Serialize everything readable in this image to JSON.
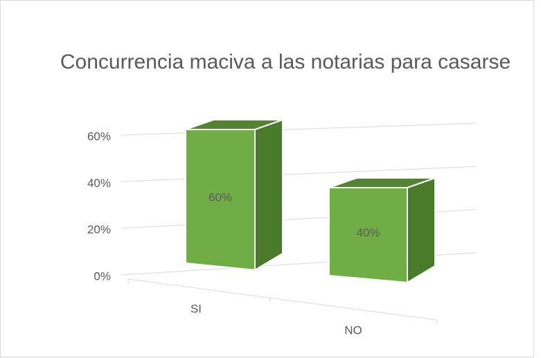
{
  "chart_data": {
    "type": "bar3d",
    "title": "Concurrencia maciva a las notarias para casarse",
    "categories": [
      "SI",
      "NO"
    ],
    "values": [
      60,
      40
    ],
    "value_labels": [
      "60%",
      "40%"
    ],
    "color": "#70ad47",
    "ylim": [
      0,
      60
    ],
    "yticks": [
      {
        "value": 0,
        "label": "0%"
      },
      {
        "value": 20,
        "label": "20%"
      },
      {
        "value": 40,
        "label": "40%"
      },
      {
        "value": 60,
        "label": "60%"
      }
    ],
    "grid": true
  }
}
